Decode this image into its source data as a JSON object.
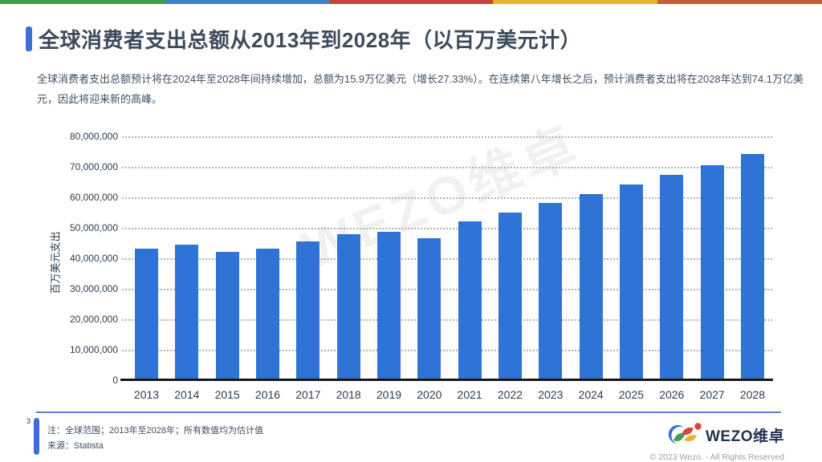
{
  "page": {
    "top_stripe_colors": [
      "#469c49",
      "#4282c4",
      "#c8413b",
      "#e4b42c",
      "#ca5a3a"
    ]
  },
  "header": {
    "title": "全球消费者支出总额从2013年到2028年（以百万美元计）",
    "subtitle": "全球消费者支出总额预计将在2024年至2028年间持续增加，总额为15.9万亿美元（增长27.33%）。在连续第八年增长之后，预计消费者支出将在2028年达到74.1万亿美元，因此将迎来新的高峰。"
  },
  "chart_data": {
    "type": "bar",
    "categories": [
      "2013",
      "2014",
      "2015",
      "2016",
      "2017",
      "2018",
      "2019",
      "2020",
      "2021",
      "2022",
      "2023",
      "2024",
      "2025",
      "2026",
      "2027",
      "2028"
    ],
    "values": [
      43200000,
      44500000,
      42200000,
      43100000,
      45600000,
      47900000,
      48800000,
      46500000,
      52200000,
      55000000,
      58200000,
      61000000,
      64100000,
      67300000,
      70600000,
      74100000
    ],
    "ylabel": "百万美元支出",
    "xlabel": "",
    "ylim": [
      0,
      80000000
    ],
    "ytick_step": 10000000,
    "bar_color": "#2e73d5",
    "grid": "horizontal-dotted",
    "legend": "none",
    "watermark": "WEZO维卓"
  },
  "footer": {
    "page_number": "3",
    "note": "注：全球范围；2013年至2028年；所有数值均为估计值",
    "source": "来源：Statista",
    "brand": "WEZO维卓",
    "copyright": "© 2023 Wezo. - All Rights Reserved"
  }
}
